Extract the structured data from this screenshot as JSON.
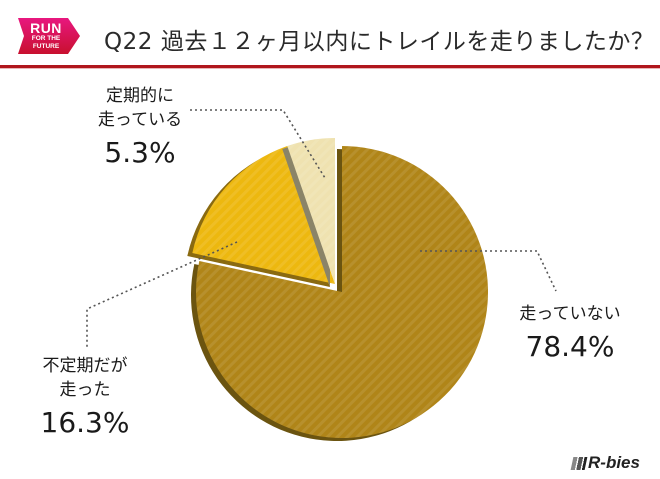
{
  "header": {
    "logo": {
      "line1": "RUN",
      "line2": "FOR THE",
      "line3": "FUTURE",
      "color_top": "#e8177f",
      "color_bottom": "#c8102e"
    },
    "question_number": "Q22",
    "question_text": "過去１２ヶ月以内にトレイルを走りましたか？",
    "rule_color": "#b0161c"
  },
  "brand": {
    "name": "R-bies"
  },
  "chart_data": {
    "type": "pie",
    "title": "Q22 過去１２ヶ月以内にトレイルを走りましたか？",
    "start_angle_deg": 0,
    "direction": "clockwise",
    "slices": [
      {
        "label": "走っていない",
        "label_lines": [
          "走っていない"
        ],
        "value": 78.4,
        "display": "78.4%",
        "color": "#b08518",
        "side_color": "#6b5410",
        "exploded": false
      },
      {
        "label": "不定期だが走った",
        "label_lines": [
          "不定期だが",
          "走った"
        ],
        "value": 16.3,
        "display": "16.3%",
        "color": "#edb80f",
        "side_color": "#8a6a10",
        "exploded": true
      },
      {
        "label": "定期的に走っている",
        "label_lines": [
          "定期的に",
          "走っている"
        ],
        "value": 5.3,
        "display": "5.3%",
        "color": "#efe2b0",
        "side_color": "#8a8468",
        "exploded": true
      }
    ],
    "legend": "none",
    "data_labels": "outside with dotted leader lines"
  }
}
